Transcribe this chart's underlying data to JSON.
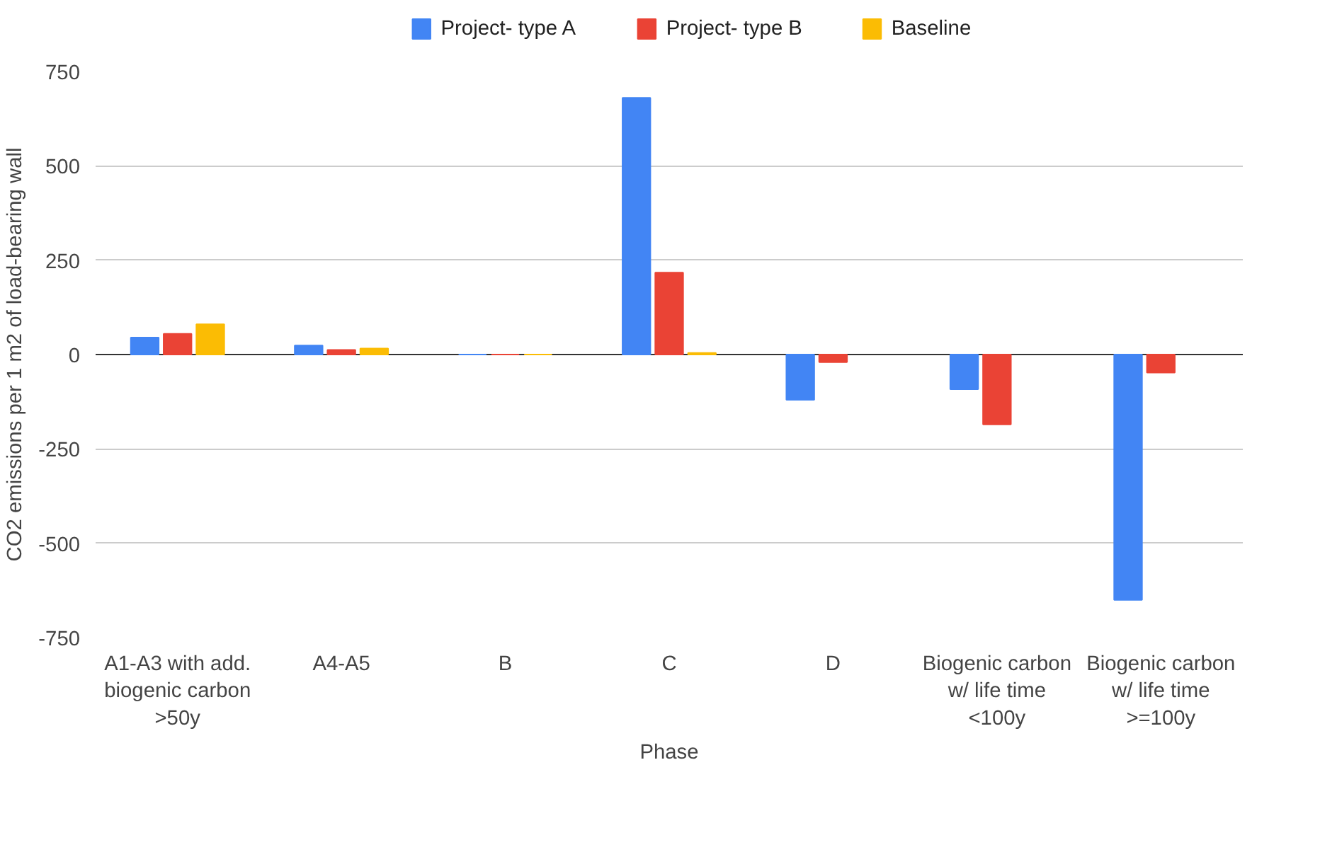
{
  "chart_data": {
    "type": "bar",
    "xlabel": "Phase",
    "ylabel": "CO2 emissions per 1 m2 of load-bearing wall",
    "categories": [
      "A1-A3 with add. biogenic carbon >50y",
      "A4-A5",
      "B",
      "C",
      "D",
      "Biogenic carbon w/ life time <100y",
      "Biogenic carbon w/ life time >=100y"
    ],
    "series": [
      {
        "name": "Project- type A",
        "color": "#4285f4",
        "values": [
          45,
          24,
          0,
          680,
          -120,
          -92,
          -650
        ]
      },
      {
        "name": "Project- type B",
        "color": "#ea4335",
        "values": [
          55,
          12,
          0,
          217,
          -20,
          -185,
          -48
        ]
      },
      {
        "name": "Baseline",
        "color": "#fbbc04",
        "values": [
          80,
          16,
          0,
          4,
          null,
          null,
          null
        ]
      }
    ],
    "ylim": [
      -750,
      750
    ],
    "yticks": [
      750,
      500,
      250,
      0,
      -250,
      -500,
      -750
    ],
    "grid": "y",
    "legend": "top"
  }
}
